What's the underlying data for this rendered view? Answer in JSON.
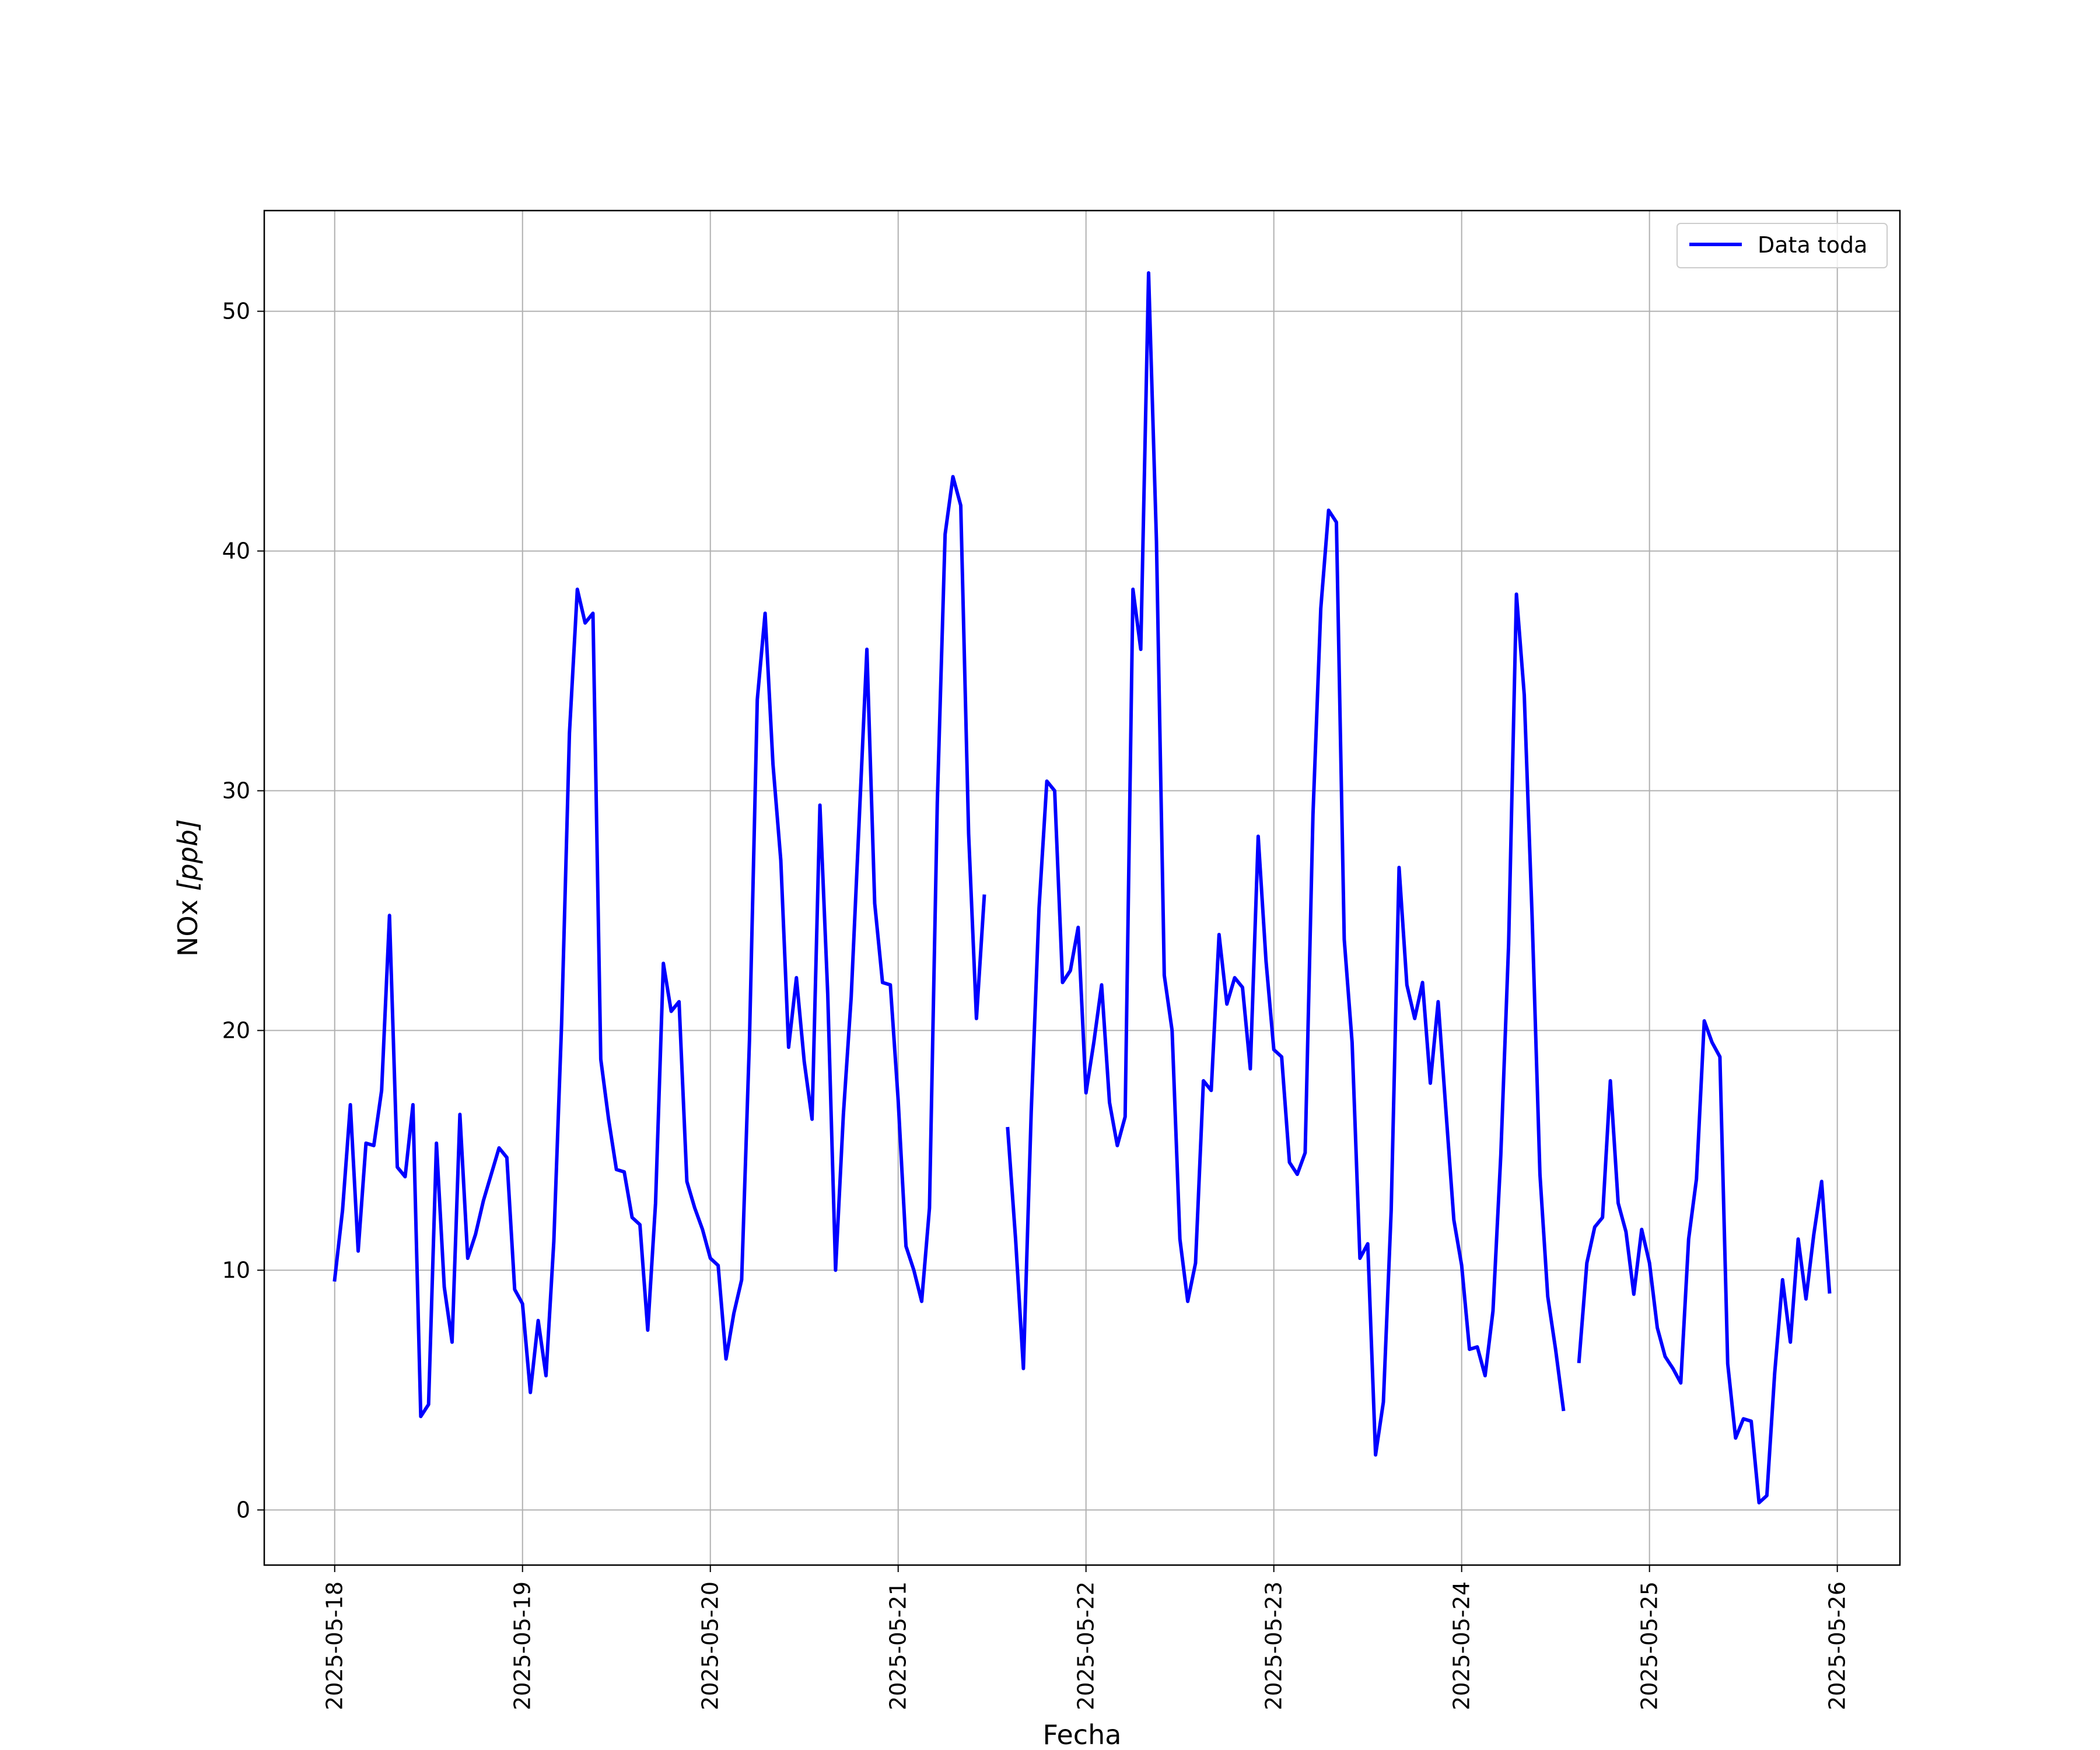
{
  "chart_data": {
    "type": "line",
    "xlabel": "Fecha",
    "ylabel": "NOx [ppb]",
    "ylabel_main": "NOx ",
    "ylabel_unit": "[ppb]",
    "x_tick_labels": [
      "2025-05-18",
      "2025-05-19",
      "2025-05-20",
      "2025-05-21",
      "2025-05-22",
      "2025-05-23",
      "2025-05-24",
      "2025-05-25",
      "2025-05-26"
    ],
    "y_ticks": [
      0,
      10,
      20,
      30,
      40,
      50
    ],
    "y_tick_labels": [
      "0",
      "10",
      "20",
      "30",
      "40",
      "50"
    ],
    "xlim": [
      "2025-05-17T15:00",
      "2025-05-26T08:00"
    ],
    "ylim": [
      -2.3,
      54.2
    ],
    "grid": true,
    "legend_position": "top-right",
    "series": [
      {
        "name": "Data toda",
        "color": "#0000ff",
        "segments": [
          [
            [
              "2025-05-18T00:00",
              9.6
            ],
            [
              "2025-05-18T01:00",
              12.5
            ],
            [
              "2025-05-18T02:00",
              16.9
            ],
            [
              "2025-05-18T03:00",
              10.8
            ],
            [
              "2025-05-18T04:00",
              15.3
            ],
            [
              "2025-05-18T05:00",
              15.2
            ],
            [
              "2025-05-18T06:00",
              17.5
            ],
            [
              "2025-05-18T07:00",
              24.8
            ],
            [
              "2025-05-18T08:00",
              14.3
            ],
            [
              "2025-05-18T09:00",
              13.9
            ],
            [
              "2025-05-18T10:00",
              16.9
            ],
            [
              "2025-05-18T11:00",
              3.9
            ],
            [
              "2025-05-18T12:00",
              4.4
            ],
            [
              "2025-05-18T13:00",
              15.3
            ],
            [
              "2025-05-18T14:00",
              9.3
            ],
            [
              "2025-05-18T15:00",
              7.0
            ],
            [
              "2025-05-18T16:00",
              16.5
            ],
            [
              "2025-05-18T17:00",
              10.5
            ],
            [
              "2025-05-18T18:00",
              11.5
            ],
            [
              "2025-05-18T19:00",
              12.9
            ],
            [
              "2025-05-18T20:00",
              14.0
            ],
            [
              "2025-05-18T21:00",
              15.1
            ],
            [
              "2025-05-18T22:00",
              14.7
            ],
            [
              "2025-05-18T23:00",
              9.2
            ],
            [
              "2025-05-19T00:00",
              8.6
            ],
            [
              "2025-05-19T01:00",
              4.9
            ],
            [
              "2025-05-19T02:00",
              7.9
            ],
            [
              "2025-05-19T03:00",
              5.6
            ],
            [
              "2025-05-19T04:00",
              11.2
            ],
            [
              "2025-05-19T05:00",
              20.3
            ],
            [
              "2025-05-19T06:00",
              32.4
            ],
            [
              "2025-05-19T07:00",
              38.4
            ],
            [
              "2025-05-19T08:00",
              37.0
            ],
            [
              "2025-05-19T09:00",
              37.4
            ],
            [
              "2025-05-19T10:00",
              18.8
            ],
            [
              "2025-05-19T11:00",
              16.3
            ],
            [
              "2025-05-19T12:00",
              14.2
            ],
            [
              "2025-05-19T13:00",
              14.1
            ],
            [
              "2025-05-19T14:00",
              12.2
            ],
            [
              "2025-05-19T15:00",
              11.9
            ],
            [
              "2025-05-19T16:00",
              7.5
            ],
            [
              "2025-05-19T17:00",
              12.8
            ],
            [
              "2025-05-19T18:00",
              22.8
            ],
            [
              "2025-05-19T19:00",
              20.8
            ],
            [
              "2025-05-19T20:00",
              21.2
            ],
            [
              "2025-05-19T21:00",
              13.7
            ],
            [
              "2025-05-19T22:00",
              12.6
            ],
            [
              "2025-05-19T23:00",
              11.7
            ],
            [
              "2025-05-20T00:00",
              10.5
            ],
            [
              "2025-05-20T01:00",
              10.2
            ],
            [
              "2025-05-20T02:00",
              6.3
            ],
            [
              "2025-05-20T03:00",
              8.2
            ],
            [
              "2025-05-20T04:00",
              9.6
            ],
            [
              "2025-05-20T05:00",
              19.6
            ],
            [
              "2025-05-20T06:00",
              33.8
            ],
            [
              "2025-05-20T07:00",
              37.4
            ],
            [
              "2025-05-20T08:00",
              31.1
            ],
            [
              "2025-05-20T09:00",
              27.1
            ],
            [
              "2025-05-20T10:00",
              19.3
            ],
            [
              "2025-05-20T11:00",
              22.2
            ],
            [
              "2025-05-20T12:00",
              18.7
            ],
            [
              "2025-05-20T13:00",
              16.3
            ],
            [
              "2025-05-20T14:00",
              29.4
            ],
            [
              "2025-05-20T15:00",
              21.5
            ],
            [
              "2025-05-20T16:00",
              10.0
            ],
            [
              "2025-05-20T17:00",
              16.5
            ],
            [
              "2025-05-20T18:00",
              21.4
            ],
            [
              "2025-05-20T19:00",
              28.6
            ],
            [
              "2025-05-20T20:00",
              35.9
            ],
            [
              "2025-05-20T21:00",
              25.3
            ],
            [
              "2025-05-20T22:00",
              22.0
            ],
            [
              "2025-05-20T23:00",
              21.9
            ],
            [
              "2025-05-21T00:00",
              17.1
            ],
            [
              "2025-05-21T01:00",
              11.0
            ],
            [
              "2025-05-21T02:00",
              10.0
            ],
            [
              "2025-05-21T03:00",
              8.7
            ],
            [
              "2025-05-21T04:00",
              12.6
            ],
            [
              "2025-05-21T05:00",
              29.5
            ],
            [
              "2025-05-21T06:00",
              40.7
            ],
            [
              "2025-05-21T07:00",
              43.1
            ],
            [
              "2025-05-21T08:00",
              41.9
            ],
            [
              "2025-05-21T09:00",
              28.2
            ],
            [
              "2025-05-21T10:00",
              20.5
            ],
            [
              "2025-05-21T11:00",
              25.6
            ]
          ],
          [
            [
              "2025-05-21T14:00",
              15.9
            ],
            [
              "2025-05-21T15:00",
              11.3
            ],
            [
              "2025-05-21T16:00",
              5.9
            ],
            [
              "2025-05-21T17:00",
              16.6
            ],
            [
              "2025-05-21T18:00",
              25.1
            ],
            [
              "2025-05-21T19:00",
              30.4
            ],
            [
              "2025-05-21T20:00",
              30.0
            ],
            [
              "2025-05-21T21:00",
              22.0
            ],
            [
              "2025-05-21T22:00",
              22.5
            ],
            [
              "2025-05-21T23:00",
              24.3
            ],
            [
              "2025-05-22T00:00",
              17.4
            ],
            [
              "2025-05-22T01:00",
              19.5
            ],
            [
              "2025-05-22T02:00",
              21.9
            ],
            [
              "2025-05-22T03:00",
              17.0
            ],
            [
              "2025-05-22T04:00",
              15.2
            ],
            [
              "2025-05-22T05:00",
              16.4
            ],
            [
              "2025-05-22T06:00",
              38.4
            ],
            [
              "2025-05-22T07:00",
              35.9
            ],
            [
              "2025-05-22T08:00",
              51.6
            ],
            [
              "2025-05-22T09:00",
              40.4
            ],
            [
              "2025-05-22T10:00",
              22.3
            ],
            [
              "2025-05-22T11:00",
              20.0
            ],
            [
              "2025-05-22T12:00",
              11.3
            ],
            [
              "2025-05-22T13:00",
              8.7
            ],
            [
              "2025-05-22T14:00",
              10.3
            ],
            [
              "2025-05-22T15:00",
              17.9
            ],
            [
              "2025-05-22T16:00",
              17.5
            ],
            [
              "2025-05-22T17:00",
              24.0
            ],
            [
              "2025-05-22T18:00",
              21.1
            ],
            [
              "2025-05-22T19:00",
              22.2
            ],
            [
              "2025-05-22T20:00",
              21.8
            ],
            [
              "2025-05-22T21:00",
              18.4
            ],
            [
              "2025-05-22T22:00",
              28.1
            ],
            [
              "2025-05-22T23:00",
              22.9
            ],
            [
              "2025-05-23T00:00",
              19.2
            ],
            [
              "2025-05-23T01:00",
              18.9
            ],
            [
              "2025-05-23T02:00",
              14.5
            ],
            [
              "2025-05-23T03:00",
              14.0
            ],
            [
              "2025-05-23T04:00",
              14.9
            ],
            [
              "2025-05-23T05:00",
              29.0
            ],
            [
              "2025-05-23T06:00",
              37.6
            ],
            [
              "2025-05-23T07:00",
              41.7
            ],
            [
              "2025-05-23T08:00",
              41.2
            ],
            [
              "2025-05-23T09:00",
              23.8
            ],
            [
              "2025-05-23T10:00",
              19.5
            ],
            [
              "2025-05-23T11:00",
              10.5
            ],
            [
              "2025-05-23T12:00",
              11.1
            ],
            [
              "2025-05-23T13:00",
              2.3
            ],
            [
              "2025-05-23T14:00",
              4.5
            ],
            [
              "2025-05-23T15:00",
              12.5
            ],
            [
              "2025-05-23T16:00",
              26.8
            ],
            [
              "2025-05-23T17:00",
              21.9
            ],
            [
              "2025-05-23T18:00",
              20.5
            ],
            [
              "2025-05-23T19:00",
              22.0
            ],
            [
              "2025-05-23T20:00",
              17.8
            ],
            [
              "2025-05-23T21:00",
              21.2
            ],
            [
              "2025-05-23T22:00",
              16.6
            ],
            [
              "2025-05-23T23:00",
              12.1
            ],
            [
              "2025-05-24T00:00",
              10.2
            ],
            [
              "2025-05-24T01:00",
              6.7
            ],
            [
              "2025-05-24T02:00",
              6.8
            ],
            [
              "2025-05-24T03:00",
              5.6
            ],
            [
              "2025-05-24T04:00",
              8.3
            ],
            [
              "2025-05-24T05:00",
              14.8
            ],
            [
              "2025-05-24T06:00",
              23.6
            ],
            [
              "2025-05-24T07:00",
              38.2
            ],
            [
              "2025-05-24T08:00",
              34.0
            ],
            [
              "2025-05-24T09:00",
              24.8
            ],
            [
              "2025-05-24T10:00",
              14.0
            ],
            [
              "2025-05-24T11:00",
              8.9
            ],
            [
              "2025-05-24T12:00",
              6.7
            ],
            [
              "2025-05-24T13:00",
              4.2
            ]
          ],
          [
            [
              "2025-05-24T15:00",
              6.2
            ],
            [
              "2025-05-24T16:00",
              10.3
            ],
            [
              "2025-05-24T17:00",
              11.8
            ],
            [
              "2025-05-24T18:00",
              12.2
            ],
            [
              "2025-05-24T19:00",
              17.9
            ],
            [
              "2025-05-24T20:00",
              12.8
            ],
            [
              "2025-05-24T21:00",
              11.6
            ],
            [
              "2025-05-24T22:00",
              9.0
            ],
            [
              "2025-05-24T23:00",
              11.7
            ],
            [
              "2025-05-25T00:00",
              10.3
            ],
            [
              "2025-05-25T01:00",
              7.6
            ],
            [
              "2025-05-25T02:00",
              6.4
            ],
            [
              "2025-05-25T03:00",
              5.9
            ],
            [
              "2025-05-25T04:00",
              5.3
            ],
            [
              "2025-05-25T05:00",
              11.3
            ],
            [
              "2025-05-25T06:00",
              13.8
            ],
            [
              "2025-05-25T07:00",
              20.4
            ],
            [
              "2025-05-25T08:00",
              19.5
            ],
            [
              "2025-05-25T09:00",
              18.9
            ],
            [
              "2025-05-25T10:00",
              6.1
            ],
            [
              "2025-05-25T11:00",
              3.0
            ],
            [
              "2025-05-25T12:00",
              3.8
            ],
            [
              "2025-05-25T13:00",
              3.7
            ],
            [
              "2025-05-25T14:00",
              0.3
            ],
            [
              "2025-05-25T15:00",
              0.6
            ],
            [
              "2025-05-25T16:00",
              5.7
            ],
            [
              "2025-05-25T17:00",
              9.6
            ],
            [
              "2025-05-25T18:00",
              7.0
            ],
            [
              "2025-05-25T19:00",
              11.3
            ],
            [
              "2025-05-25T20:00",
              8.8
            ],
            [
              "2025-05-25T21:00",
              11.5
            ],
            [
              "2025-05-25T22:00",
              13.7
            ],
            [
              "2025-05-25T23:00",
              9.1
            ]
          ]
        ]
      }
    ]
  }
}
